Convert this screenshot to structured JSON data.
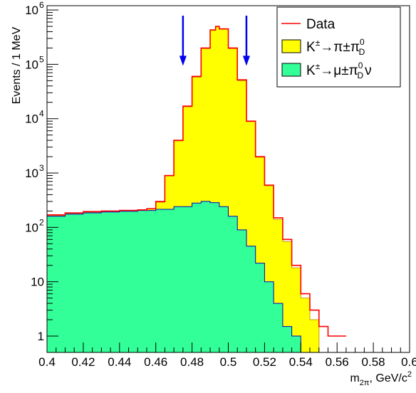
{
  "chart_data": {
    "type": "histogram",
    "ylabel": "Events / 1 MeV",
    "xlabel": "m",
    "xlabel_sub": "2π",
    "xlabel_unit": ", GeV/c",
    "xlabel_sup": "2",
    "xlim": [
      0.4,
      0.6
    ],
    "ylim": [
      0.5,
      1200000
    ],
    "yscale": "log",
    "grid": false,
    "x_ticks": [
      "0.4",
      "0.42",
      "0.44",
      "0.46",
      "0.48",
      "0.5",
      "0.52",
      "0.54",
      "0.56",
      "0.58",
      "0.6"
    ],
    "y_ticks": [
      {
        "base": "10",
        "exp": "6",
        "value": 1000000
      },
      {
        "base": "10",
        "exp": "5",
        "value": 100000
      },
      {
        "base": "10",
        "exp": "4",
        "value": 10000
      },
      {
        "base": "10",
        "exp": "3",
        "value": 1000
      },
      {
        "base": "10",
        "exp": "2",
        "value": 100
      },
      {
        "base": "10",
        "exp": "",
        "value": 10
      },
      {
        "base": "1",
        "exp": "",
        "value": 1
      }
    ],
    "legend_position": "top-right",
    "legend": [
      {
        "key": "data",
        "base": "Data",
        "sup": "",
        "rest": "",
        "sub": "",
        "end": ""
      },
      {
        "key": "kpipi",
        "base": "K",
        "sup": "±",
        "rest": "→π±π",
        "sub": "D",
        "sup2": "0",
        "end": ""
      },
      {
        "key": "kmunu",
        "base": "K",
        "sup": "±",
        "rest": "→μ±π",
        "sub": "D",
        "sup2": "0",
        "end": "ν"
      }
    ],
    "arrows": [
      {
        "x": 0.475,
        "y_top": 250000,
        "y_bottom": 100000
      },
      {
        "x": 0.51,
        "y_top": 250000,
        "y_bottom": 100000
      }
    ],
    "colors": {
      "data": "#ff0000",
      "kpipi_fill": "#ffff00",
      "kmunu_fill": "#33ff99",
      "kmunu_line": "#0000cc",
      "arrow": "#0000ee"
    },
    "series": [
      {
        "name": "Data",
        "kind": "line",
        "x": [
          0.4,
          0.41,
          0.42,
          0.43,
          0.44,
          0.45,
          0.455,
          0.46,
          0.465,
          0.47,
          0.475,
          0.48,
          0.485,
          0.49,
          0.493,
          0.495,
          0.5,
          0.505,
          0.51,
          0.515,
          0.52,
          0.525,
          0.53,
          0.535,
          0.54,
          0.545,
          0.55,
          0.555,
          0.56
        ],
        "y": [
          170,
          185,
          195,
          200,
          205,
          210,
          220,
          300,
          900,
          4000,
          17000,
          60000,
          200000,
          430000,
          500000,
          450000,
          200000,
          52000,
          9000,
          2000,
          600,
          150,
          60,
          20,
          6,
          3,
          1.5,
          1,
          1
        ]
      },
      {
        "name": "K±→π±πD0",
        "kind": "fill",
        "x": [
          0.4,
          0.41,
          0.42,
          0.43,
          0.44,
          0.45,
          0.455,
          0.46,
          0.465,
          0.47,
          0.475,
          0.48,
          0.485,
          0.49,
          0.493,
          0.495,
          0.5,
          0.505,
          0.51,
          0.515,
          0.52,
          0.525,
          0.53,
          0.535,
          0.54,
          0.545
        ],
        "y": [
          165,
          180,
          190,
          198,
          203,
          208,
          218,
          290,
          880,
          3900,
          16500,
          58000,
          195000,
          420000,
          490000,
          440000,
          195000,
          50000,
          8800,
          1950,
          580,
          140,
          55,
          18,
          5,
          2
        ]
      },
      {
        "name": "K±→μ±πD0ν",
        "kind": "fill",
        "x": [
          0.4,
          0.41,
          0.42,
          0.43,
          0.44,
          0.45,
          0.46,
          0.47,
          0.48,
          0.485,
          0.49,
          0.495,
          0.5,
          0.505,
          0.51,
          0.515,
          0.52,
          0.525,
          0.53,
          0.535
        ],
        "y": [
          160,
          175,
          185,
          192,
          198,
          205,
          215,
          240,
          280,
          300,
          285,
          240,
          160,
          90,
          45,
          22,
          10,
          4,
          1.5,
          1
        ]
      }
    ]
  }
}
